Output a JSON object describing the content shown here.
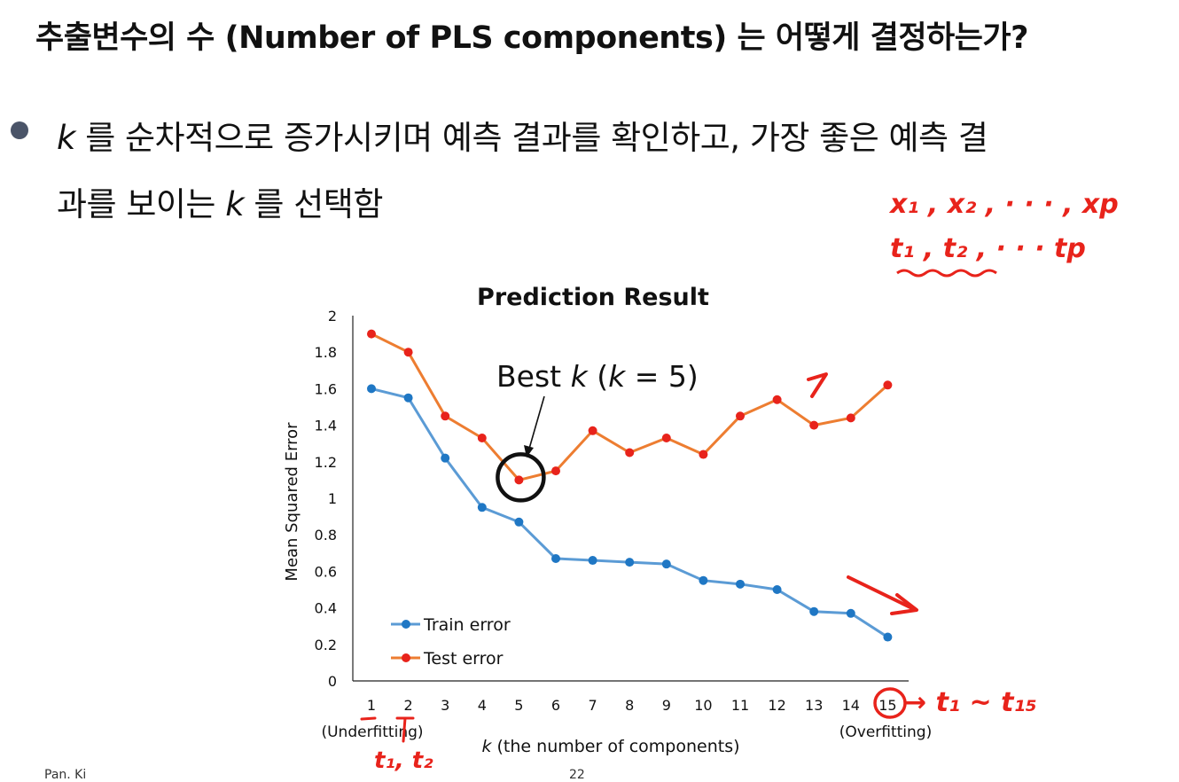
{
  "slide": {
    "title": "추출변수의 수 (Number of PLS components) 는 어떻게 결정하는가?",
    "bullet_line1_var": "k",
    "bullet_line1_rest": " 를 순차적으로 증가시키며 예측 결과를 확인하고, 가장 좋은 예측 결",
    "bullet_line2_start": "과를 보이는 ",
    "bullet_line2_var": "k",
    "bullet_line2_end": " 를 선택함",
    "footer_author": "Pan. Ki",
    "footer_page": "22"
  },
  "chart_data": {
    "type": "line",
    "title": "Prediction Result",
    "xlabel_var": "k",
    "xlabel_rest": " (the number of components)",
    "ylabel": "Mean Squared Error",
    "x": [
      1,
      2,
      3,
      4,
      5,
      6,
      7,
      8,
      9,
      10,
      11,
      12,
      13,
      14,
      15
    ],
    "ylim": [
      0,
      2
    ],
    "yticks": [
      "0",
      "0.2",
      "0.4",
      "0.6",
      "0.8",
      "1",
      "1.2",
      "1.4",
      "1.6",
      "1.8",
      "2"
    ],
    "xtick_notes": {
      "first": "(Underfitting)",
      "last": "(Overfitting)"
    },
    "series": [
      {
        "name": "Train error",
        "color": "#5b9bd5",
        "marker": "#1f77c4",
        "values": [
          1.6,
          1.55,
          1.22,
          0.95,
          0.87,
          0.67,
          0.66,
          0.65,
          0.64,
          0.55,
          0.53,
          0.5,
          0.38,
          0.37,
          0.24
        ]
      },
      {
        "name": "Test error",
        "color": "#ed7d31",
        "marker": "#e8231b",
        "values": [
          1.9,
          1.8,
          1.45,
          1.33,
          1.1,
          1.15,
          1.37,
          1.25,
          1.33,
          1.24,
          1.45,
          1.54,
          1.4,
          1.44,
          1.62
        ]
      }
    ],
    "legend": "bottom-left",
    "grid": false,
    "annotation": {
      "text_pre": "Best ",
      "text_var1": "k",
      "text_mid": " (",
      "text_var2": "k",
      "text_post": " = 5)",
      "x": 5
    }
  },
  "handwriting": {
    "vars_line": "x₁ , x₂ , · · · , xp",
    "comps_line": "t₁ , t₂ , · · · tp",
    "range_note": "→ t₁ ~ t₁₅",
    "pair_note": "t₁, t₂",
    "ink_color": "#e8231b"
  }
}
